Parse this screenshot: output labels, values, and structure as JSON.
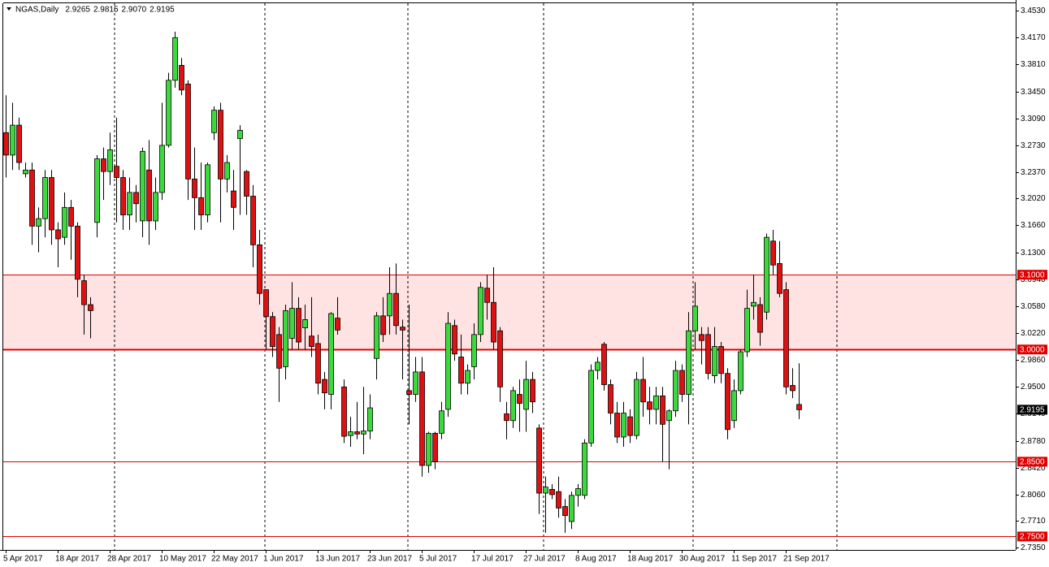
{
  "chart_data": {
    "type": "candlestick",
    "title": "NGAS,Daily",
    "header_values": [
      "2.9265",
      "2.9815",
      "2.9070",
      "2.9195"
    ],
    "categories": [
      "5 Apr 2017",
      null,
      null,
      null,
      null,
      null,
      null,
      null,
      "18 Apr 2017",
      null,
      null,
      null,
      null,
      null,
      null,
      null,
      "28 Apr 2017",
      null,
      null,
      null,
      null,
      null,
      null,
      null,
      "10 May 2017",
      null,
      null,
      null,
      null,
      null,
      null,
      null,
      "22 May 2017",
      null,
      null,
      null,
      null,
      null,
      null,
      null,
      "1 Jun 2017",
      null,
      null,
      null,
      null,
      null,
      null,
      null,
      "13 Jun 2017",
      null,
      null,
      null,
      null,
      null,
      null,
      null,
      "23 Jun 2017",
      null,
      null,
      null,
      null,
      null,
      null,
      null,
      "5 Jul 2017",
      null,
      null,
      null,
      null,
      null,
      null,
      null,
      "17 Jul 2017",
      null,
      null,
      null,
      null,
      null,
      null,
      null,
      "27 Jul 2017",
      null,
      null,
      null,
      null,
      null,
      null,
      null,
      "8 Aug 2017",
      null,
      null,
      null,
      null,
      null,
      null,
      null,
      "18 Aug 2017",
      null,
      null,
      null,
      null,
      null,
      null,
      null,
      "30 Aug 2017",
      null,
      null,
      null,
      null,
      null,
      null,
      null,
      "11 Sep 2017",
      null,
      null,
      null,
      null,
      null,
      null,
      null,
      "21 Sep 2017",
      null,
      null
    ],
    "open": [
      3.29,
      3.26,
      3.3,
      3.235,
      3.24,
      3.165,
      3.175,
      3.23,
      3.16,
      3.15,
      3.19,
      3.165,
      3.092,
      3.06,
      3.17,
      3.255,
      3.238,
      3.245,
      3.23,
      3.18,
      3.21,
      3.172,
      3.24,
      3.172,
      3.21,
      3.273,
      3.36,
      3.38,
      3.355,
      3.228,
      3.203,
      3.18,
      3.29,
      3.32,
      3.228,
      3.212,
      3.282,
      3.238,
      3.205,
      3.14,
      3.08,
      3.044,
      3.02,
      2.977,
      3.015,
      3.055,
      3.029,
      3.018,
      3.008,
      2.96,
      2.94,
      3.042,
      2.95,
      2.885,
      2.89,
      2.887,
      2.891,
      2.988,
      3.045,
      3.045,
      3.075,
      3.03,
      2.945,
      2.94,
      2.97,
      2.845,
      2.888,
      2.888,
      2.92,
      3.032,
      2.99,
      2.955,
      2.977,
      3.02,
      3.082,
      3.063,
      3.025,
      2.914,
      2.905,
      2.94,
      2.92,
      2.96,
      2.895,
      2.808,
      2.813,
      2.81,
      2.79,
      2.77,
      2.805,
      2.805,
      2.875,
      2.972,
      3.007,
      2.953,
      2.915,
      2.883,
      2.91,
      2.885,
      2.96,
      2.93,
      2.92,
      2.938,
      2.905,
      2.918,
      2.972,
      2.94,
      3.025,
      3.02,
      3.02,
      2.965,
      3.004,
      2.968,
      2.905,
      2.945,
      2.997,
      3.058,
      3.06,
      3.05,
      3.145,
      3.115,
      3.08,
      2.952,
      2.9265
    ],
    "high": [
      3.34,
      3.33,
      3.31,
      3.25,
      3.25,
      3.19,
      3.24,
      3.24,
      3.17,
      3.21,
      3.2,
      3.17,
      3.1,
      3.07,
      3.26,
      3.27,
      3.29,
      3.31,
      3.24,
      3.23,
      3.22,
      3.27,
      3.28,
      3.23,
      3.33,
      3.37,
      3.425,
      3.39,
      3.36,
      3.27,
      3.25,
      3.25,
      3.325,
      3.33,
      3.26,
      3.24,
      3.3,
      3.24,
      3.22,
      3.16,
      3.08,
      3.05,
      3.03,
      3.06,
      3.09,
      3.07,
      3.06,
      3.07,
      3.02,
      2.97,
      3.05,
      3.07,
      2.96,
      2.91,
      2.93,
      2.95,
      2.94,
      3.05,
      3.07,
      3.11,
      3.115,
      3.04,
      3.06,
      2.99,
      2.99,
      2.89,
      2.89,
      2.93,
      3.05,
      3.04,
      3.02,
      2.98,
      3.035,
      3.09,
      3.1,
      3.11,
      3.03,
      2.93,
      2.95,
      2.96,
      2.985,
      2.97,
      2.9,
      2.83,
      2.82,
      2.83,
      2.8,
      2.81,
      2.82,
      2.88,
      2.98,
      2.99,
      3.01,
      2.96,
      2.93,
      2.93,
      2.92,
      2.97,
      2.99,
      2.95,
      2.95,
      2.95,
      2.92,
      2.985,
      2.98,
      3.05,
      3.09,
      3.03,
      3.03,
      3.03,
      3.01,
      2.975,
      2.96,
      3.0,
      3.08,
      3.1,
      3.07,
      3.155,
      3.16,
      3.145,
      3.09,
      2.975,
      2.9815
    ],
    "low": [
      3.23,
      3.24,
      3.24,
      3.23,
      3.14,
      3.13,
      3.15,
      3.14,
      3.11,
      3.14,
      3.12,
      3.07,
      3.02,
      3.015,
      3.15,
      3.2,
      3.22,
      3.17,
      3.16,
      3.16,
      3.17,
      3.15,
      3.14,
      3.16,
      3.2,
      3.27,
      3.35,
      3.34,
      3.2,
      3.16,
      3.16,
      3.17,
      3.28,
      3.17,
      3.21,
      3.16,
      3.18,
      3.18,
      3.11,
      3.06,
      3.0,
      2.99,
      2.93,
      2.96,
      3.0,
      3.0,
      3.0,
      2.99,
      2.94,
      2.92,
      2.92,
      3.02,
      2.875,
      2.87,
      2.88,
      2.86,
      2.88,
      2.96,
      3.01,
      3.02,
      3.02,
      2.96,
      2.9,
      2.93,
      2.83,
      2.835,
      2.84,
      2.88,
      2.91,
      2.985,
      2.94,
      2.94,
      2.96,
      3.01,
      3.04,
      3.0,
      2.93,
      2.88,
      2.895,
      2.89,
      2.89,
      2.915,
      2.78,
      2.755,
      2.8,
      2.775,
      2.755,
      2.76,
      2.79,
      2.8,
      2.87,
      2.96,
      2.945,
      2.9,
      2.875,
      2.87,
      2.875,
      2.88,
      2.91,
      2.9,
      2.9,
      2.85,
      2.84,
      2.91,
      2.93,
      2.9,
      3.0,
      2.98,
      2.96,
      2.955,
      2.955,
      2.88,
      2.895,
      2.94,
      2.99,
      3.04,
      3.005,
      3.04,
      3.1,
      3.07,
      2.94,
      2.935,
      2.907
    ],
    "close": [
      3.26,
      3.3,
      3.25,
      3.24,
      3.165,
      3.175,
      3.23,
      3.16,
      3.148,
      3.19,
      3.165,
      3.094,
      3.06,
      3.052,
      3.255,
      3.238,
      3.267,
      3.23,
      3.18,
      3.21,
      3.195,
      3.265,
      3.172,
      3.21,
      3.273,
      3.36,
      3.417,
      3.347,
      3.228,
      3.203,
      3.18,
      3.247,
      3.32,
      3.228,
      3.25,
      3.19,
      3.293,
      3.205,
      3.14,
      3.075,
      3.044,
      3.004,
      2.975,
      3.052,
      3.055,
      3.01,
      3.04,
      3.004,
      2.955,
      2.942,
      3.048,
      3.026,
      2.884,
      2.89,
      2.887,
      2.891,
      2.922,
      3.045,
      3.02,
      3.075,
      3.032,
      3.026,
      2.94,
      2.97,
      2.845,
      2.888,
      2.85,
      2.918,
      3.035,
      2.994,
      2.955,
      2.972,
      3.02,
      3.083,
      3.063,
      3.01,
      2.95,
      2.905,
      2.945,
      2.928,
      2.96,
      2.93,
      2.808,
      2.816,
      2.806,
      2.788,
      2.778,
      2.805,
      2.814,
      2.875,
      2.972,
      2.983,
      2.953,
      2.915,
      2.883,
      2.915,
      2.885,
      2.96,
      2.93,
      2.92,
      2.938,
      2.9,
      2.918,
      2.972,
      2.94,
      3.025,
      3.058,
      3.012,
      2.968,
      3.004,
      2.968,
      2.893,
      2.945,
      2.997,
      3.055,
      3.063,
      3.023,
      3.15,
      3.113,
      3.075,
      2.95,
      2.945,
      2.9195
    ],
    "up_color": "#3cd93c",
    "down_color": "#dd1111",
    "ylim": [
      2.732,
      3.463
    ],
    "yticks": [
      {
        "value": 3.453,
        "label": "3.4530"
      },
      {
        "value": 3.417,
        "label": "3.4170"
      },
      {
        "value": 3.381,
        "label": "3.3810"
      },
      {
        "value": 3.345,
        "label": "3.3450"
      },
      {
        "value": 3.309,
        "label": "3.3090"
      },
      {
        "value": 3.273,
        "label": "3.2730"
      },
      {
        "value": 3.237,
        "label": "3.2370"
      },
      {
        "value": 3.202,
        "label": "3.2020"
      },
      {
        "value": 3.166,
        "label": "3.1660"
      },
      {
        "value": 3.13,
        "label": "3.1300"
      },
      {
        "value": 3.094,
        "label": "3.0940"
      },
      {
        "value": 3.058,
        "label": "3.0580"
      },
      {
        "value": 3.022,
        "label": "3.0220"
      },
      {
        "value": 2.986,
        "label": "2.9860"
      },
      {
        "value": 2.95,
        "label": "2.9500"
      },
      {
        "value": 2.914,
        "label": "2.9140"
      },
      {
        "value": 2.878,
        "label": "2.8780"
      },
      {
        "value": 2.842,
        "label": "2.8420"
      },
      {
        "value": 2.806,
        "label": "2.8060"
      },
      {
        "value": 2.771,
        "label": "2.7710"
      },
      {
        "value": 2.735,
        "label": "2.7350"
      }
    ],
    "zone": {
      "from": 3.0,
      "to": 3.1,
      "color": "#ffe2e2"
    },
    "levels": [
      {
        "value": 3.1,
        "label": "3.1000"
      },
      {
        "value": 3.0,
        "label": "3.0000"
      },
      {
        "value": 2.85,
        "label": "2.8500"
      },
      {
        "value": 2.75,
        "label": "2.7500"
      }
    ],
    "level_color": "#e00000",
    "price_label": {
      "value": 2.9195,
      "label": "2.9195"
    }
  }
}
